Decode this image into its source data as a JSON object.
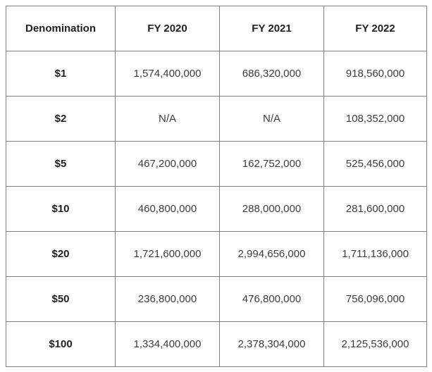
{
  "chart_data": {
    "type": "table",
    "title": "",
    "columns": [
      "Denomination",
      "FY 2020",
      "FY 2021",
      "FY 2022"
    ],
    "categories": [
      "$1",
      "$2",
      "$5",
      "$10",
      "$20",
      "$50",
      "$100"
    ],
    "series": [
      {
        "name": "FY 2020",
        "values": [
          "1,574,400,000",
          "N/A",
          "467,200,000",
          "460,800,000",
          "1,721,600,000",
          "236,800,000",
          "1,334,400,000"
        ]
      },
      {
        "name": "FY 2021",
        "values": [
          "686,320,000",
          "N/A",
          "162,752,000",
          "288,000,000",
          "2,994,656,000",
          "476,800,000",
          "2,378,304,000"
        ]
      },
      {
        "name": "FY 2022",
        "values": [
          "918,560,000",
          "108,352,000",
          "525,456,000",
          "281,600,000",
          "1,711,136,000",
          "756,096,000",
          "2,125,536,000"
        ]
      }
    ],
    "layout": {
      "border_color": "#808080",
      "header_text_color": "#212121",
      "cell_text_color": "#3c3c3c",
      "background": "#ffffff",
      "grid": true
    }
  }
}
